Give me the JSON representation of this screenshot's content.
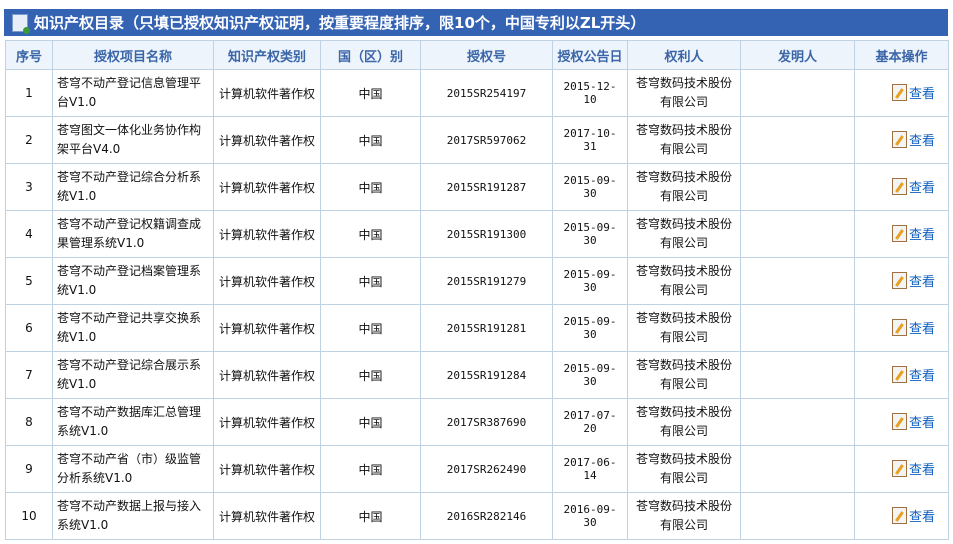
{
  "title": "知识产权目录（只填已授权知识产权证明，按重要程度排序，限10个，中国专利以ZL开头）",
  "columns": [
    "序号",
    "授权项目名称",
    "知识产权类别",
    "国（区）别",
    "授权号",
    "授权公告日",
    "权利人",
    "发明人",
    "基本操作"
  ],
  "action_label": "查看",
  "rows": [
    {
      "no": "1",
      "name": "苍穹不动产登记信息管理平台V1.0",
      "type": "计算机软件著作权",
      "country": "中国",
      "auth_no": "2015SR254197",
      "date": "2015-12-10",
      "owner": "苍穹数码技术股份有限公司",
      "inventor": ""
    },
    {
      "no": "2",
      "name": "苍穹图文一体化业务协作构架平台V4.0",
      "type": "计算机软件著作权",
      "country": "中国",
      "auth_no": "2017SR597062",
      "date": "2017-10-31",
      "owner": "苍穹数码技术股份有限公司",
      "inventor": ""
    },
    {
      "no": "3",
      "name": "苍穹不动产登记综合分析系统V1.0",
      "type": "计算机软件著作权",
      "country": "中国",
      "auth_no": "2015SR191287",
      "date": "2015-09-30",
      "owner": "苍穹数码技术股份有限公司",
      "inventor": ""
    },
    {
      "no": "4",
      "name": "苍穹不动产登记权籍调查成果管理系统V1.0",
      "type": "计算机软件著作权",
      "country": "中国",
      "auth_no": "2015SR191300",
      "date": "2015-09-30",
      "owner": "苍穹数码技术股份有限公司",
      "inventor": ""
    },
    {
      "no": "5",
      "name": "苍穹不动产登记档案管理系统V1.0",
      "type": "计算机软件著作权",
      "country": "中国",
      "auth_no": "2015SR191279",
      "date": "2015-09-30",
      "owner": "苍穹数码技术股份有限公司",
      "inventor": ""
    },
    {
      "no": "6",
      "name": "苍穹不动产登记共享交换系统V1.0",
      "type": "计算机软件著作权",
      "country": "中国",
      "auth_no": "2015SR191281",
      "date": "2015-09-30",
      "owner": "苍穹数码技术股份有限公司",
      "inventor": ""
    },
    {
      "no": "7",
      "name": "苍穹不动产登记综合展示系统V1.0",
      "type": "计算机软件著作权",
      "country": "中国",
      "auth_no": "2015SR191284",
      "date": "2015-09-30",
      "owner": "苍穹数码技术股份有限公司",
      "inventor": ""
    },
    {
      "no": "8",
      "name": "苍穹不动产数据库汇总管理系统V1.0",
      "type": "计算机软件著作权",
      "country": "中国",
      "auth_no": "2017SR387690",
      "date": "2017-07-20",
      "owner": "苍穹数码技术股份有限公司",
      "inventor": ""
    },
    {
      "no": "9",
      "name": "苍穹不动产省（市）级监管分析系统V1.0",
      "type": "计算机软件著作权",
      "country": "中国",
      "auth_no": "2017SR262490",
      "date": "2017-06-14",
      "owner": "苍穹数码技术股份有限公司",
      "inventor": ""
    },
    {
      "no": "10",
      "name": "苍穹不动产数据上报与接入系统V1.0",
      "type": "计算机软件著作权",
      "country": "中国",
      "auth_no": "2016SR282146",
      "date": "2016-09-30",
      "owner": "苍穹数码技术股份有限公司",
      "inventor": ""
    }
  ]
}
